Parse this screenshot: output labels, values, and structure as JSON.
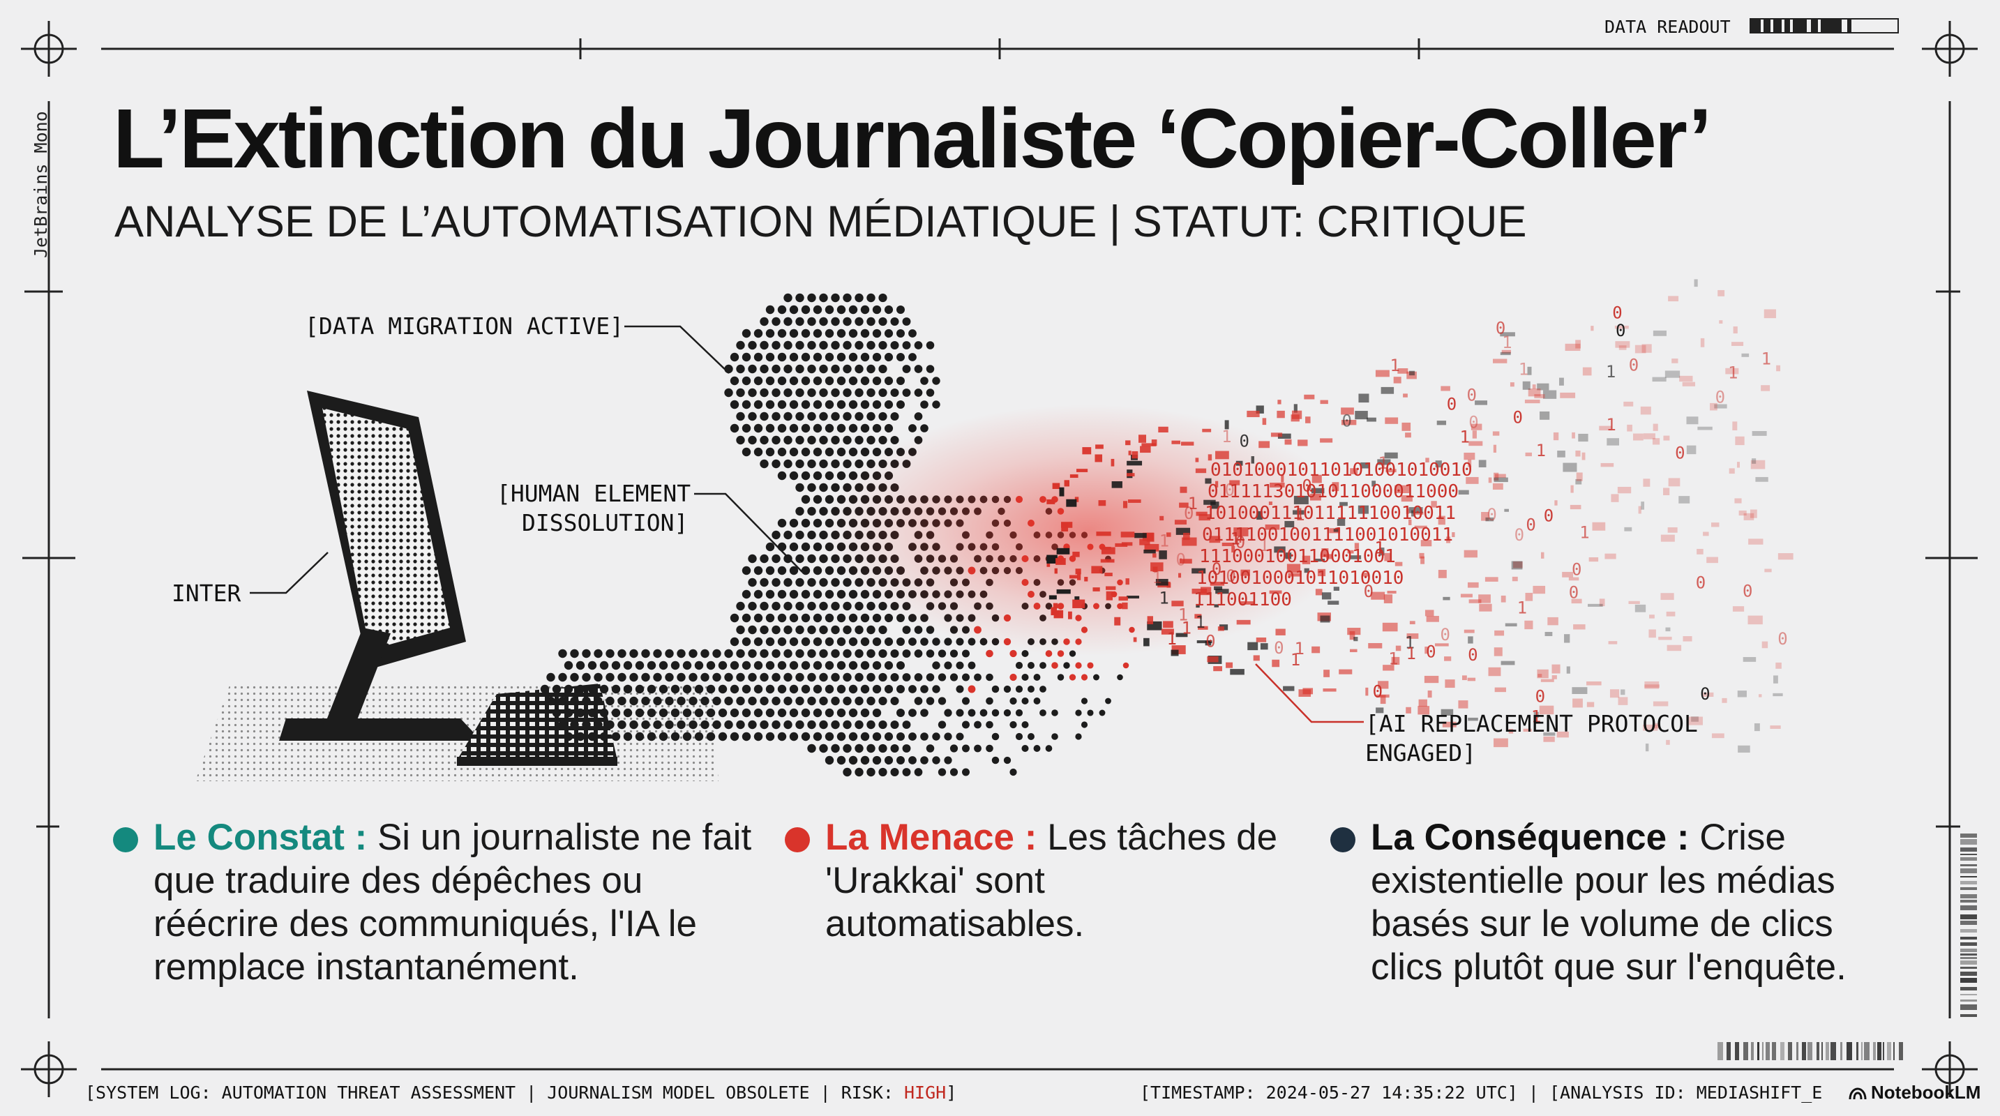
{
  "header": {
    "title": "L’Extinction du Journaliste ‘Copier-Coller’",
    "subtitle": "ANALYSE DE L’AUTOMATISATION MÉDIATIQUE | STATUT: CRITIQUE"
  },
  "side_label": "JetBrains Mono",
  "data_readout": {
    "label": "DATA READOUT"
  },
  "illustration": {
    "callouts": {
      "data_migration": "[DATA MIGRATION ACTIVE]",
      "human_element_line1": "[HUMAN ELEMENT",
      "human_element_line2": "DISSOLUTION]",
      "inter": "INTER",
      "ai_replacement_line1": "[AI REPLACEMENT PROTOCOL",
      "ai_replacement_line2": "ENGAGED]"
    },
    "binary_lines": [
      "010100010110101001010010",
      "01111130101011000011000",
      "10100011101111110010011",
      "01111001001111001010011",
      "111000100110001001",
      "1010010001011010010",
      "111001100"
    ],
    "colors": {
      "red": "#d9342b",
      "dark": "#1c1c1c"
    }
  },
  "columns": [
    {
      "heading": "Le Constat :",
      "body": " Si un journaliste ne fait que traduire des dépêches ou réécrire des communiqués, l'IA le remplace instantanément.",
      "color": "#14897e"
    },
    {
      "heading": "La Menace :",
      "body": " Les tâches de 'Urakkai' sont automatisables.",
      "color": "#d9342b"
    },
    {
      "heading": "La Conséquence :",
      "body": " Crise existentielle pour les médias basés sur le volume de clics clics plutôt que sur l'enquête.",
      "color": "#1f3040"
    }
  ],
  "footer": {
    "left_prefix": "[SYSTEM LOG: AUTOMATION THREAT ASSESSMENT | JOURNALISM MODEL OBSOLETE | RISK: ",
    "risk": "HIGH",
    "left_suffix": "]",
    "right": "[TIMESTAMP: 2024-05-27 14:35:22 UTC] | [ANALYSIS ID: MEDIASHIFT_E",
    "brand": "NotebookLM"
  }
}
